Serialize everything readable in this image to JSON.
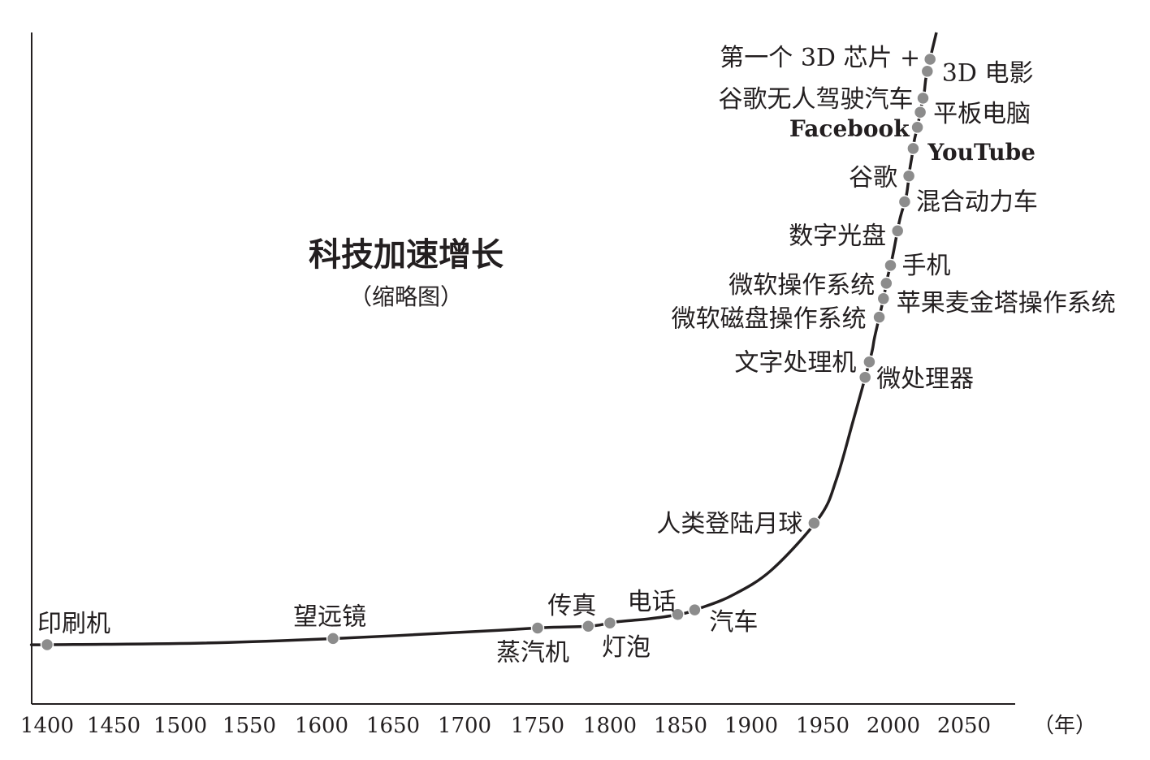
{
  "chart_data": {
    "type": "line",
    "title": "科技加速增长",
    "subtitle": "（缩略图）",
    "xlabel": "（年）",
    "ylabel": "",
    "x_ticks": [
      1400,
      1450,
      1500,
      1550,
      1600,
      1650,
      1700,
      1750,
      1800,
      1850,
      1900,
      1950,
      2000,
      2050
    ],
    "xlim": [
      1390,
      2065
    ],
    "grid": false,
    "legend": "none",
    "colors": {
      "curve": "#231f20",
      "axis": "#231f20",
      "point": "#8c8c8c",
      "text": "#231f20"
    },
    "events": [
      {
        "year": 1400,
        "label": "印刷机"
      },
      {
        "year": 1608,
        "label": "望远镜"
      },
      {
        "year": 1750,
        "label": "蒸汽机"
      },
      {
        "year": 1785,
        "label": "传真"
      },
      {
        "year": 1800,
        "label": "灯泡"
      },
      {
        "year": 1848,
        "label": "电话"
      },
      {
        "year": 1860,
        "label": "汽车"
      },
      {
        "year": 1944,
        "label": "人类登陆月球"
      },
      {
        "year": 1980,
        "label": "微处理器"
      },
      {
        "year": 1983,
        "label": "文字处理机"
      },
      {
        "year": 1990,
        "label": "微软磁盘操作系统"
      },
      {
        "year": 1993,
        "label": "苹果麦金塔操作系统"
      },
      {
        "year": 1995,
        "label": "微软操作系统"
      },
      {
        "year": 1998,
        "label": "手机"
      },
      {
        "year": 2003,
        "label": "数字光盘"
      },
      {
        "year": 2008,
        "label": "混合动力车"
      },
      {
        "year": 2011,
        "label": "谷歌"
      },
      {
        "year": 2014,
        "label": "YouTube"
      },
      {
        "year": 2017,
        "label": "Facebook"
      },
      {
        "year": 2019,
        "label": "平板电脑"
      },
      {
        "year": 2021,
        "label": "谷歌无人驾驶汽车"
      },
      {
        "year": 2024,
        "label": "3D 电影"
      },
      {
        "year": 2026,
        "label": "第一个 3D 芯片 +"
      }
    ]
  }
}
